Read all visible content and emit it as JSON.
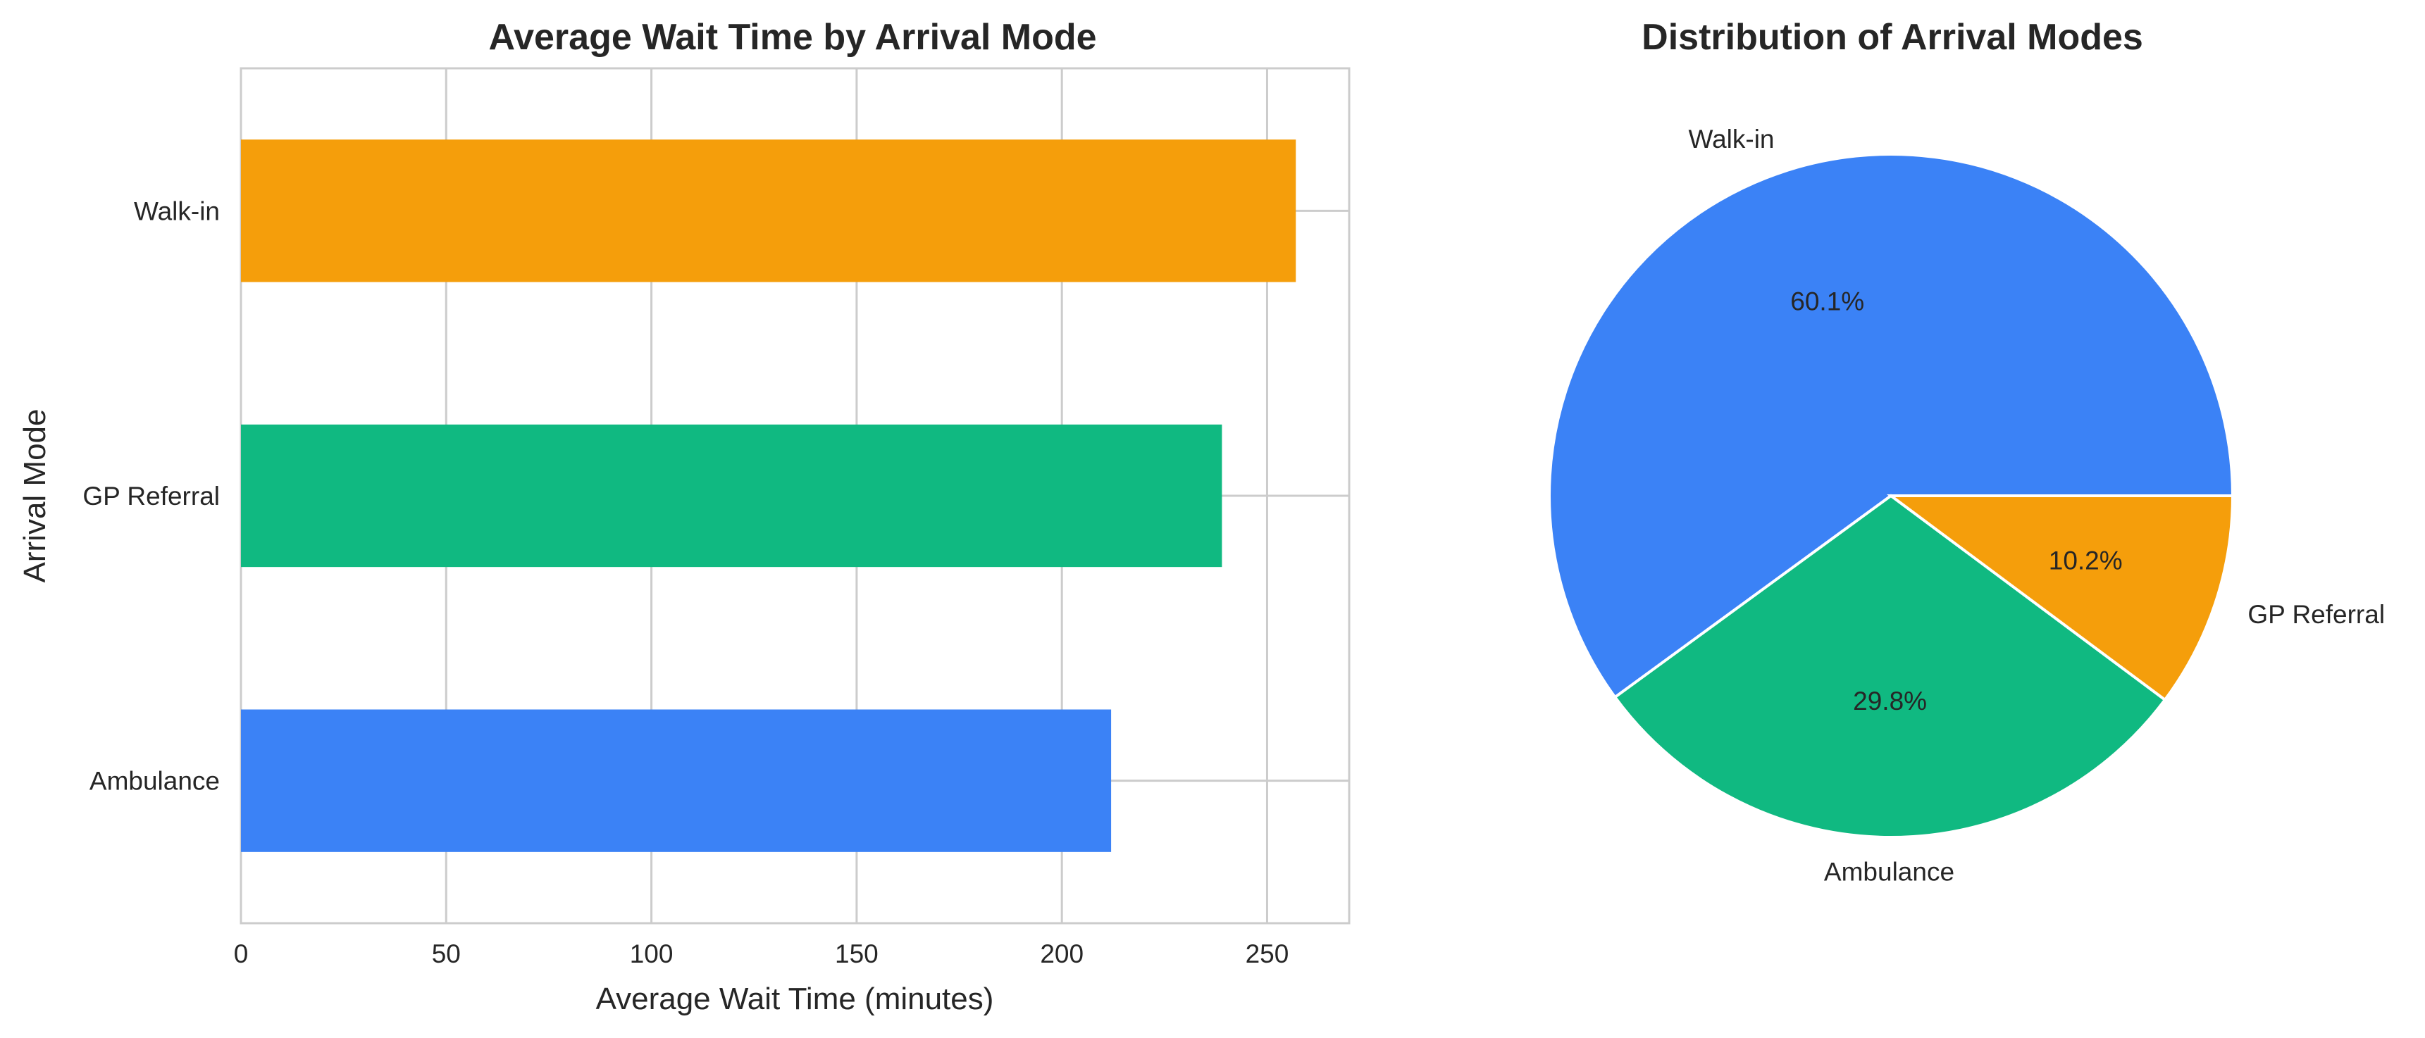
{
  "chart_data": [
    {
      "type": "bar",
      "orientation": "horizontal",
      "title": "Average Wait Time by Arrival Mode",
      "xlabel": "Average Wait Time (minutes)",
      "ylabel": "Arrival Mode",
      "categories": [
        "Ambulance",
        "GP Referral",
        "Walk-in"
      ],
      "values": [
        212,
        239,
        257
      ],
      "colors": [
        "#3b82f6",
        "#10b981",
        "#f59e0b"
      ],
      "xlim": [
        0,
        270
      ],
      "xticks": [
        0,
        50,
        100,
        150,
        200,
        250
      ],
      "grid": true
    },
    {
      "type": "pie",
      "title": "Distribution of Arrival Modes",
      "labels": [
        "Walk-in",
        "Ambulance",
        "GP Referral"
      ],
      "values": [
        60.1,
        29.8,
        10.2
      ],
      "value_labels": [
        "60.1%",
        "29.8%",
        "10.2%"
      ],
      "colors": [
        "#3b82f6",
        "#10b981",
        "#f59e0b"
      ]
    }
  ]
}
